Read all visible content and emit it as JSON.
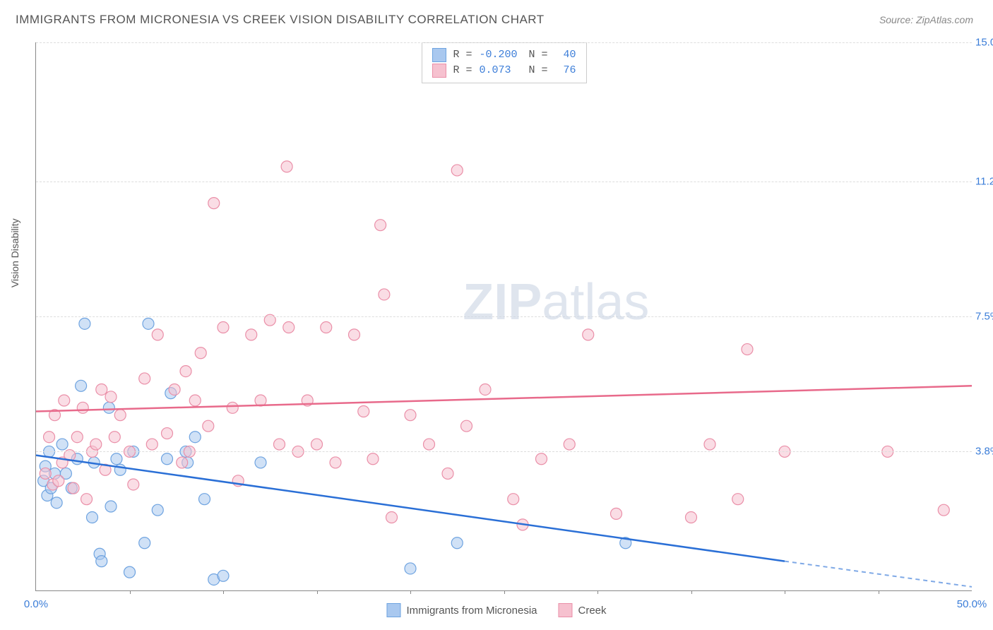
{
  "title": "IMMIGRANTS FROM MICRONESIA VS CREEK VISION DISABILITY CORRELATION CHART",
  "source": "Source: ZipAtlas.com",
  "watermark_bold": "ZIP",
  "watermark_light": "atlas",
  "chart": {
    "type": "scatter",
    "x_min": 0.0,
    "x_max": 50.0,
    "y_min": 0.0,
    "y_max": 15.0,
    "y_axis_label": "Vision Disability",
    "x_tick_labels": [
      {
        "x": 0.0,
        "label": "0.0%"
      },
      {
        "x": 50.0,
        "label": "50.0%"
      }
    ],
    "x_ticks_minor": [
      5.0,
      10.0,
      15.0,
      20.0,
      25.0,
      30.0,
      35.0,
      40.0,
      45.0
    ],
    "y_ticks": [
      {
        "y": 3.8,
        "label": "3.8%"
      },
      {
        "y": 7.5,
        "label": "7.5%"
      },
      {
        "y": 11.2,
        "label": "11.2%"
      },
      {
        "y": 15.0,
        "label": "15.0%"
      }
    ],
    "grid_color": "#dddddd",
    "background": "#ffffff",
    "axis_color": "#888888",
    "series": [
      {
        "name": "Immigrants from Micronesia",
        "key": "micronesia",
        "color_fill": "#a9c8ef",
        "color_stroke": "#6ea3e0",
        "line_color": "#2a6fd6",
        "r_value": "-0.200",
        "n_value": "40",
        "trend": {
          "x1": 0.0,
          "y1": 3.7,
          "x2": 40.0,
          "y2": 0.8,
          "dash_to_x": 50.0,
          "dash_to_y": 0.1
        },
        "points": [
          [
            0.4,
            3.0
          ],
          [
            0.6,
            2.6
          ],
          [
            0.5,
            3.4
          ],
          [
            0.8,
            2.8
          ],
          [
            1.0,
            3.2
          ],
          [
            1.1,
            2.4
          ],
          [
            0.7,
            3.8
          ],
          [
            1.4,
            4.0
          ],
          [
            1.6,
            3.2
          ],
          [
            1.9,
            2.8
          ],
          [
            2.2,
            3.6
          ],
          [
            2.4,
            5.6
          ],
          [
            2.6,
            7.3
          ],
          [
            3.0,
            2.0
          ],
          [
            3.1,
            3.5
          ],
          [
            3.4,
            1.0
          ],
          [
            3.5,
            0.8
          ],
          [
            3.9,
            5.0
          ],
          [
            4.0,
            2.3
          ],
          [
            4.3,
            3.6
          ],
          [
            4.5,
            3.3
          ],
          [
            5.0,
            0.5
          ],
          [
            5.2,
            3.8
          ],
          [
            5.8,
            1.3
          ],
          [
            6.0,
            7.3
          ],
          [
            6.5,
            2.2
          ],
          [
            7.0,
            3.6
          ],
          [
            7.2,
            5.4
          ],
          [
            8.0,
            3.8
          ],
          [
            8.1,
            3.5
          ],
          [
            8.5,
            4.2
          ],
          [
            9.0,
            2.5
          ],
          [
            9.5,
            0.3
          ],
          [
            10.0,
            0.4
          ],
          [
            12.0,
            3.5
          ],
          [
            20.0,
            0.6
          ],
          [
            22.5,
            1.3
          ],
          [
            31.5,
            1.3
          ]
        ]
      },
      {
        "name": "Creek",
        "key": "creek",
        "color_fill": "#f6c1cf",
        "color_stroke": "#ea8fa8",
        "line_color": "#e86a8b",
        "r_value": "0.073",
        "n_value": "76",
        "trend": {
          "x1": 0.0,
          "y1": 4.9,
          "x2": 50.0,
          "y2": 5.6
        },
        "points": [
          [
            0.5,
            3.2
          ],
          [
            0.7,
            4.2
          ],
          [
            0.9,
            2.9
          ],
          [
            1.0,
            4.8
          ],
          [
            1.2,
            3.0
          ],
          [
            1.4,
            3.5
          ],
          [
            1.5,
            5.2
          ],
          [
            1.8,
            3.7
          ],
          [
            2.0,
            2.8
          ],
          [
            2.2,
            4.2
          ],
          [
            2.5,
            5.0
          ],
          [
            2.7,
            2.5
          ],
          [
            3.0,
            3.8
          ],
          [
            3.2,
            4.0
          ],
          [
            3.5,
            5.5
          ],
          [
            3.7,
            3.3
          ],
          [
            4.0,
            5.3
          ],
          [
            4.2,
            4.2
          ],
          [
            4.5,
            4.8
          ],
          [
            5.0,
            3.8
          ],
          [
            5.2,
            2.9
          ],
          [
            5.8,
            5.8
          ],
          [
            6.2,
            4.0
          ],
          [
            6.5,
            7.0
          ],
          [
            7.0,
            4.3
          ],
          [
            7.4,
            5.5
          ],
          [
            7.8,
            3.5
          ],
          [
            8.0,
            6.0
          ],
          [
            8.2,
            3.8
          ],
          [
            8.5,
            5.2
          ],
          [
            8.8,
            6.5
          ],
          [
            9.2,
            4.5
          ],
          [
            9.5,
            10.6
          ],
          [
            10.0,
            7.2
          ],
          [
            10.5,
            5.0
          ],
          [
            10.8,
            3.0
          ],
          [
            11.5,
            7.0
          ],
          [
            12.0,
            5.2
          ],
          [
            12.5,
            7.4
          ],
          [
            13.0,
            4.0
          ],
          [
            13.4,
            11.6
          ],
          [
            13.5,
            7.2
          ],
          [
            14.0,
            3.8
          ],
          [
            14.5,
            5.2
          ],
          [
            15.0,
            4.0
          ],
          [
            15.5,
            7.2
          ],
          [
            16.0,
            3.5
          ],
          [
            17.0,
            7.0
          ],
          [
            17.5,
            4.9
          ],
          [
            18.0,
            3.6
          ],
          [
            18.4,
            10.0
          ],
          [
            18.6,
            8.1
          ],
          [
            19.0,
            2.0
          ],
          [
            20.0,
            4.8
          ],
          [
            21.0,
            4.0
          ],
          [
            22.0,
            3.2
          ],
          [
            22.5,
            11.5
          ],
          [
            23.0,
            4.5
          ],
          [
            24.0,
            5.5
          ],
          [
            25.5,
            2.5
          ],
          [
            26.0,
            1.8
          ],
          [
            27.0,
            3.6
          ],
          [
            28.5,
            4.0
          ],
          [
            29.5,
            7.0
          ],
          [
            31.0,
            2.1
          ],
          [
            35.0,
            2.0
          ],
          [
            36.0,
            4.0
          ],
          [
            37.5,
            2.5
          ],
          [
            38.0,
            6.6
          ],
          [
            40.0,
            3.8
          ],
          [
            45.5,
            3.8
          ],
          [
            48.5,
            2.2
          ]
        ]
      }
    ],
    "legend_top": {
      "rows": [
        {
          "swatch_fill": "#a9c8ef",
          "swatch_stroke": "#6ea3e0",
          "text_label_r": "R =",
          "r": "-0.200",
          "text_label_n": "N =",
          "n": "40"
        },
        {
          "swatch_fill": "#f6c1cf",
          "swatch_stroke": "#ea8fa8",
          "text_label_r": "R =",
          "r": " 0.073",
          "text_label_n": "N =",
          "n": " 76"
        }
      ],
      "value_color": "#3b7dd8",
      "label_color": "#555555"
    },
    "legend_bottom": [
      {
        "swatch_fill": "#a9c8ef",
        "swatch_stroke": "#6ea3e0",
        "label": "Immigrants from Micronesia"
      },
      {
        "swatch_fill": "#f6c1cf",
        "swatch_stroke": "#ea8fa8",
        "label": "Creek"
      }
    ]
  }
}
